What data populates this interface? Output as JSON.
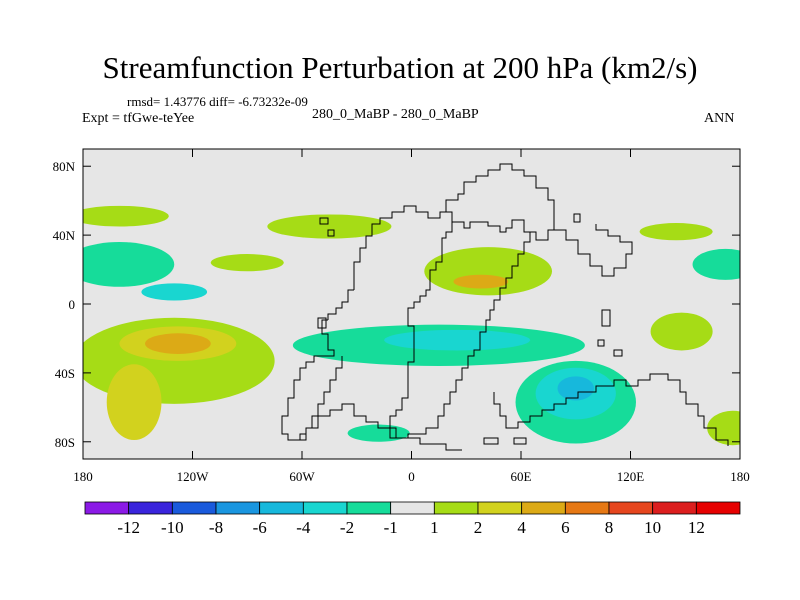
{
  "chart_data": {
    "type": "heatmap",
    "title": "Streamfunction Perturbation at 200 hPa (km2/s)",
    "stats": "rmsd= 1.43776 diff= -6.73232e-09",
    "experiment": "Expt = tfGwe-teYee",
    "center_label": "280_0_MaBP - 280_0_MaBP",
    "season": "ANN",
    "x_range": [
      -180,
      180
    ],
    "y_range": [
      -90,
      90
    ],
    "x_ticks": [
      {
        "value": -180,
        "label": "180"
      },
      {
        "value": -120,
        "label": "120W"
      },
      {
        "value": -60,
        "label": "60W"
      },
      {
        "value": 0,
        "label": "0"
      },
      {
        "value": 60,
        "label": "60E"
      },
      {
        "value": 120,
        "label": "120E"
      },
      {
        "value": 180,
        "label": "180"
      }
    ],
    "y_ticks": [
      {
        "value": 80,
        "label": "80N"
      },
      {
        "value": 40,
        "label": "40N"
      },
      {
        "value": 0,
        "label": "0"
      },
      {
        "value": -40,
        "label": "40S"
      },
      {
        "value": -80,
        "label": "80S"
      }
    ],
    "colorbar": {
      "labels": [
        "-12",
        "-10",
        "-8",
        "-6",
        "-4",
        "-2",
        "-1",
        "1",
        "2",
        "4",
        "6",
        "8",
        "10",
        "12"
      ],
      "colors": [
        "#8b1ae6",
        "#3a24dc",
        "#1a5adc",
        "#1a96e0",
        "#17b8dc",
        "#19d6d0",
        "#16dc9a",
        "#e6e6e6",
        "#a6dc16",
        "#d2d21e",
        "#dcaa16",
        "#e67814",
        "#e6461e",
        "#dc1e1e",
        "#e60000"
      ]
    },
    "contour_regions": [
      {
        "name": "n-pacific-pos",
        "level": "1",
        "lon": -160,
        "lat": 51,
        "rx": 27,
        "ry": 6
      },
      {
        "name": "n-atlantic-pos",
        "level": "1",
        "lon": -45,
        "lat": 45,
        "rx": 34,
        "ry": 7
      },
      {
        "name": "e-pacific-pos",
        "level": "1",
        "lon": -90,
        "lat": 24,
        "rx": 20,
        "ry": 5
      },
      {
        "name": "asia-pos",
        "level": "1",
        "lon": 42,
        "lat": 19,
        "rx": 35,
        "ry": 14
      },
      {
        "name": "asia-pos-core",
        "level": "4",
        "lon": 38,
        "lat": 13,
        "rx": 15,
        "ry": 4
      },
      {
        "name": "w-pacific-pos",
        "level": "1",
        "lon": 145,
        "lat": 42,
        "rx": 20,
        "ry": 5
      },
      {
        "name": "c-pacific-neg",
        "level": "-1",
        "lon": -160,
        "lat": 23,
        "rx": 30,
        "ry": 13
      },
      {
        "name": "c-pacific-neg-core",
        "level": "-2",
        "lon": -130,
        "lat": 7,
        "rx": 18,
        "ry": 5
      },
      {
        "name": "dateline-neg",
        "level": "-1",
        "lon": 172,
        "lat": 23,
        "rx": 18,
        "ry": 9
      },
      {
        "name": "s-pacific-pos",
        "level": "1",
        "lon": -130,
        "lat": -33,
        "rx": 55,
        "ry": 25
      },
      {
        "name": "s-pacific-pos-inner",
        "level": "2",
        "lon": -128,
        "lat": -23,
        "rx": 32,
        "ry": 10
      },
      {
        "name": "s-pacific-pos-core",
        "level": "4",
        "lon": -128,
        "lat": -23,
        "rx": 18,
        "ry": 6
      },
      {
        "name": "se-pacific-pos",
        "level": "2",
        "lon": -152,
        "lat": -57,
        "rx": 15,
        "ry": 22
      },
      {
        "name": "tropics-neg",
        "level": "-1",
        "lon": 15,
        "lat": -24,
        "rx": 80,
        "ry": 12
      },
      {
        "name": "tropics-neg-core",
        "level": "-2",
        "lon": 25,
        "lat": -21,
        "rx": 40,
        "ry": 6
      },
      {
        "name": "indian-ocean-neg",
        "level": "-1",
        "lon": 90,
        "lat": -57,
        "rx": 33,
        "ry": 24
      },
      {
        "name": "indian-ocean-neg-mid",
        "level": "-2",
        "lon": 90,
        "lat": -52,
        "rx": 22,
        "ry": 15
      },
      {
        "name": "indian-ocean-neg-core",
        "level": "-4",
        "lon": 90,
        "lat": -49,
        "rx": 10,
        "ry": 7
      },
      {
        "name": "s-atlantic-neg",
        "level": "-1",
        "lon": -18,
        "lat": -75,
        "rx": 17,
        "ry": 5
      },
      {
        "name": "sw-pacific-pos",
        "level": "1",
        "lon": 148,
        "lat": -16,
        "rx": 17,
        "ry": 11
      },
      {
        "name": "s-ocean-pos",
        "level": "1",
        "lon": 176,
        "lat": -72,
        "rx": 14,
        "ry": 10
      }
    ]
  }
}
